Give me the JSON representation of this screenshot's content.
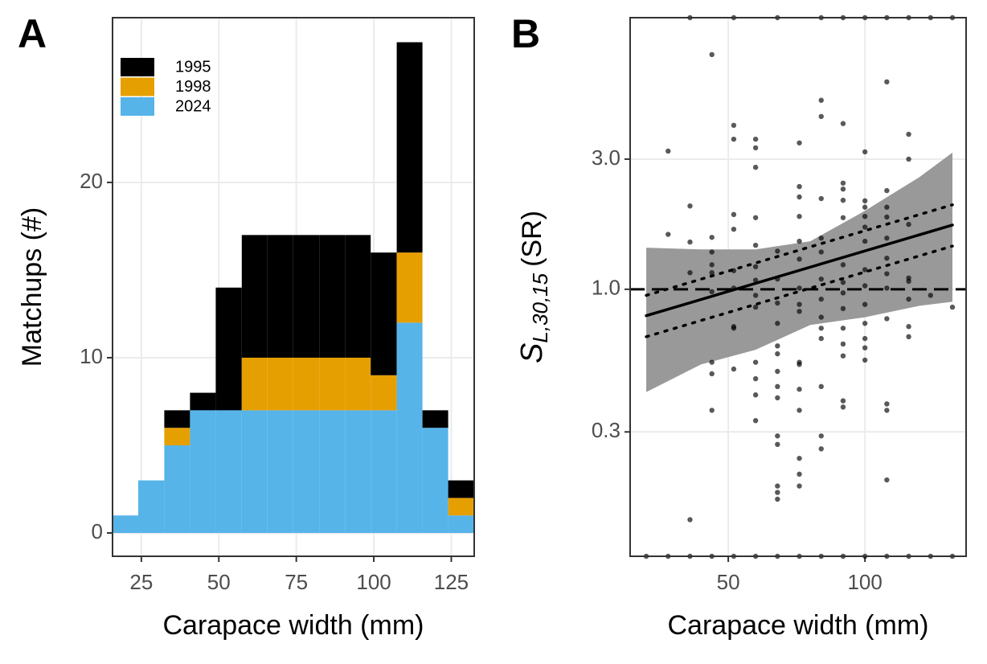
{
  "chart_data": [
    {
      "type": "histogram",
      "panel_label": "A",
      "x_label": "Carapace width (mm)",
      "y_label": "Matchups (#)",
      "bins": [
        15.7,
        24,
        32.4,
        40.7,
        49,
        57.4,
        65.7,
        74,
        82.4,
        90.7,
        99,
        107.4,
        115.7,
        124,
        132.4
      ],
      "series": [
        {
          "name": "1995",
          "color": "#000000",
          "values": [
            0,
            0,
            1,
            1,
            7,
            7,
            7,
            7,
            7,
            7,
            7,
            12,
            1,
            1
          ]
        },
        {
          "name": "1998",
          "color": "#e69f00",
          "values": [
            0,
            0,
            1,
            0,
            0,
            3,
            3,
            3,
            3,
            3,
            2,
            4,
            0,
            1
          ]
        },
        {
          "name": "2024",
          "color": "#56b4e9",
          "values": [
            1,
            3,
            5,
            7,
            7,
            7,
            7,
            7,
            7,
            7,
            7,
            12,
            6,
            1
          ]
        }
      ],
      "stacked": true,
      "xlim": [
        15.7,
        132.4
      ],
      "xticks": [
        25,
        50,
        75,
        100,
        125
      ],
      "ylim": [
        -1.33,
        29.4
      ],
      "yticks": [
        0,
        10,
        20
      ],
      "grid": true,
      "legend": "top-left"
    },
    {
      "type": "scatter",
      "panel_label": "B",
      "x_label": "Carapace width (mm)",
      "y_label": {
        "main": "S",
        "subscript": "L,30,15",
        "suffix": "(SR)"
      },
      "log_y": true,
      "xlim": [
        14.1,
        137
      ],
      "xticks": [
        50,
        100
      ],
      "ylim": [
        0.105,
        9.9
      ],
      "yticks": [
        0.3,
        {
          "value": 1,
          "label": "1.0"
        },
        {
          "value": 3,
          "label": "3.0"
        }
      ],
      "grid": true,
      "point_color": "#000000",
      "reference_line": 1,
      "groups": [
        {
          "x": 20,
          "y": [
            0.105
          ]
        },
        {
          "x": 28,
          "y": [
            3.21,
            1.59,
            0.105
          ]
        },
        {
          "x": 36,
          "y": [
            9.9,
            2.02,
            1.49,
            1.15,
            0.143,
            0.105
          ]
        },
        {
          "x": 44,
          "y": [
            7.25,
            1.55,
            1.37,
            1.23,
            1.15,
            0.98,
            0.54,
            0.49,
            0.36,
            0.105
          ]
        },
        {
          "x": 52,
          "y": [
            9.9,
            3.99,
            3.55,
            1.88,
            1.66,
            1.17,
            1.01,
            0.73,
            0.72,
            0.51,
            0.105
          ]
        },
        {
          "x": 60,
          "y": [
            3.55,
            3.3,
            2.8,
            1.83,
            1.45,
            1.21,
            1.08,
            0.95,
            0.86,
            0.54,
            0.47,
            0.41,
            0.33,
            0.105
          ]
        },
        {
          "x": 68,
          "y": [
            9.9,
            1.38,
            1.09,
            0.89,
            0.75,
            0.62,
            0.58,
            0.5,
            0.44,
            0.4,
            0.29,
            0.27,
            0.19,
            0.18,
            0.17,
            0.105
          ]
        },
        {
          "x": 76,
          "y": [
            3.44,
            2.38,
            2.18,
            1.85,
            1.5,
            1.29,
            1.01,
            0.88,
            0.83,
            0.54,
            0.53,
            0.43,
            0.36,
            0.24,
            0.21,
            0.19,
            0.105
          ]
        },
        {
          "x": 84,
          "y": [
            9.9,
            4.93,
            4.3,
            2.15,
            1.54,
            1.37,
            1.09,
            0.92,
            0.79,
            0.72,
            0.66,
            0.44,
            0.29,
            0.26,
            0.105
          ]
        },
        {
          "x": 92,
          "y": [
            9.9,
            4.05,
            2.45,
            2.33,
            2.12,
            1.83,
            1.23,
            1.06,
            0.97,
            0.85,
            0.72,
            0.63,
            0.57,
            0.39,
            0.37,
            0.105
          ]
        },
        {
          "x": 100,
          "y": [
            9.9,
            3.19,
            2.11,
            2,
            1.85,
            1.69,
            1.5,
            1.18,
            1.03,
            0.88,
            0.75,
            0.66,
            0.61,
            0.55,
            0.105
          ]
        },
        {
          "x": 108,
          "y": [
            9.9,
            5.76,
            2.3,
            2,
            1.84,
            1.54,
            1.3,
            1.14,
            1.01,
            0.78,
            0.38,
            0.36,
            0.2,
            0.105
          ]
        },
        {
          "x": 116,
          "y": [
            9.9,
            3.7,
            3,
            1.73,
            1.1,
            1.07,
            0.92,
            0.73,
            0.67,
            0.105
          ]
        },
        {
          "x": 124,
          "y": [
            9.9,
            0.95,
            0.105
          ]
        },
        {
          "x": 132,
          "y": [
            9.9,
            0.86,
            0.105
          ]
        }
      ],
      "band": {
        "x": [
          20,
          40,
          60,
          80,
          100,
          120,
          132
        ],
        "upper": [
          1.42,
          1.4,
          1.4,
          1.5,
          1.94,
          2.58,
          3.17
        ],
        "lower": [
          0.42,
          0.53,
          0.6,
          0.74,
          0.79,
          0.87,
          0.9
        ]
      },
      "fit": {
        "x": [
          20,
          132
        ],
        "mid": [
          0.8,
          1.72
        ],
        "upper": [
          0.95,
          2.04
        ],
        "lower": [
          0.67,
          1.44
        ]
      }
    }
  ]
}
